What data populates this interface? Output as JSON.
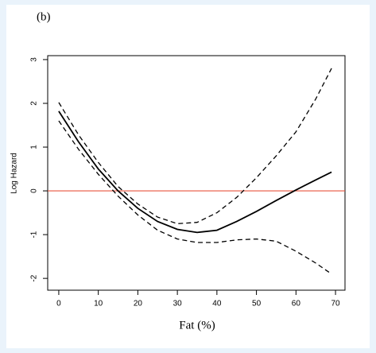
{
  "chart_data": {
    "type": "line",
    "panel_label": "(b)",
    "x_label": "Fat (%)",
    "y_label": "Log Hazard",
    "x": [
      0,
      5,
      10,
      15,
      20,
      25,
      30,
      35,
      40,
      45,
      50,
      55,
      60,
      65,
      69
    ],
    "series": [
      {
        "color": "#000000",
        "dashed": false,
        "values": [
          1.82,
          1.12,
          0.5,
          0.0,
          -0.4,
          -0.7,
          -0.88,
          -0.95,
          -0.9,
          -0.7,
          -0.47,
          -0.22,
          0.02,
          0.25,
          0.43
        ]
      },
      {
        "color": "#000000",
        "dashed": true,
        "values": [
          2.02,
          1.28,
          0.65,
          0.1,
          -0.3,
          -0.6,
          -0.75,
          -0.72,
          -0.5,
          -0.15,
          0.3,
          0.8,
          1.35,
          2.1,
          2.8
        ]
      },
      {
        "color": "#000000",
        "dashed": true,
        "values": [
          1.6,
          0.95,
          0.38,
          -0.12,
          -0.55,
          -0.9,
          -1.1,
          -1.18,
          -1.18,
          -1.12,
          -1.1,
          -1.15,
          -1.38,
          -1.65,
          -1.9
        ]
      }
    ],
    "reference_line": {
      "value": 0,
      "color": "#e8553f"
    },
    "xlim": [
      -2.8,
      72.4
    ],
    "ylim": [
      -2.27,
      3.09
    ],
    "xticks": [
      0,
      10,
      20,
      30,
      40,
      50,
      60,
      70
    ],
    "yticks": [
      -2,
      -1,
      0,
      1,
      2,
      3
    ]
  }
}
